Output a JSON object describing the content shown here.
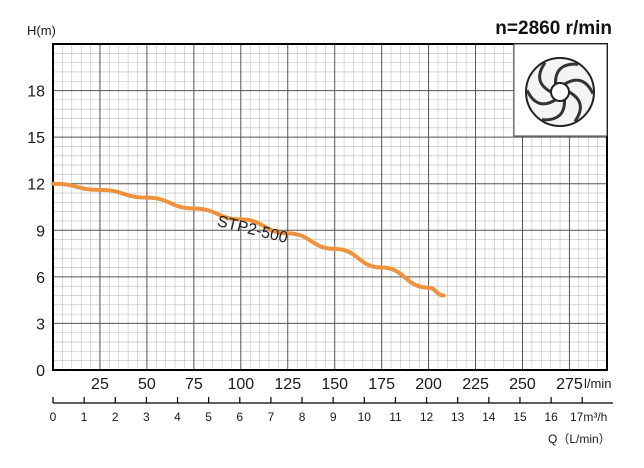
{
  "chart_data": {
    "type": "line",
    "speed_label": "n=2860 r/min",
    "ylabel": "H(m)",
    "xlabel_primary_unit": "l/min",
    "xlabel_secondary": "Q（L/min）",
    "xlabel_secondary_unit": "17m³/h",
    "ylim": [
      0,
      21
    ],
    "xlim": [
      0,
      295
    ],
    "y_ticks": [
      "0",
      "3",
      "6",
      "9",
      "12",
      "15",
      "18"
    ],
    "x_ticks": [
      "25",
      "50",
      "75",
      "100",
      "125",
      "150",
      "175",
      "200",
      "225",
      "250",
      "275"
    ],
    "q_ticks": [
      "0",
      "1",
      "2",
      "3",
      "4",
      "5",
      "6",
      "7",
      "8",
      "9",
      "10",
      "11",
      "12",
      "13",
      "14",
      "15",
      "16"
    ],
    "grid": true,
    "series": [
      {
        "name": "STP2-500",
        "color": "#f0923c",
        "x": [
          0,
          25,
          50,
          75,
          100,
          125,
          150,
          175,
          200,
          208
        ],
        "y": [
          12.0,
          11.6,
          11.1,
          10.4,
          9.7,
          8.8,
          7.8,
          6.6,
          5.3,
          4.8
        ]
      }
    ],
    "inset_icon": "impeller-icon"
  }
}
